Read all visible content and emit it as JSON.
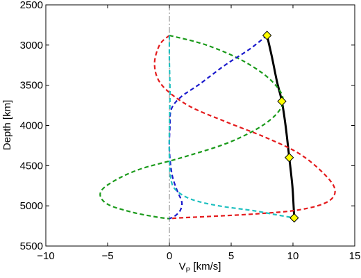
{
  "chart_data": {
    "type": "line",
    "title": "",
    "xlabel_main": "V",
    "xlabel_sub": "P",
    "xlabel_rest": " [km/s]",
    "ylabel": "Depth [km]",
    "xlim": [
      -10,
      15
    ],
    "ylim": [
      2500,
      5500
    ],
    "y_reversed": true,
    "grid": false,
    "legend": "none",
    "x_ticks": [
      -10,
      -5,
      0,
      5,
      10,
      15
    ],
    "x_tick_labels": [
      "−10",
      "−5",
      "0",
      "5",
      "10",
      "15"
    ],
    "y_ticks": [
      2500,
      3000,
      3500,
      4000,
      4500,
      5000,
      5500
    ],
    "y_tick_labels": [
      "2500",
      "3000",
      "3500",
      "4000",
      "4500",
      "5000",
      "5500"
    ],
    "series": [
      {
        "color": "#000000",
        "style": "solid",
        "width": 3,
        "x": [
          7.9,
          8.3,
          8.7,
          9.1,
          9.4,
          9.7,
          9.95,
          10.05,
          10.1
        ],
        "y": [
          2880,
          3150,
          3450,
          3700,
          4000,
          4400,
          4750,
          5000,
          5150
        ]
      },
      {
        "color": "#7f7f7f",
        "style": "dashdot",
        "width": 1,
        "x": [
          0,
          0
        ],
        "y": [
          2500,
          5500
        ]
      },
      {
        "color": "#e41a1c",
        "style": "dashed",
        "width": 2.2,
        "x": [
          0.0,
          -0.8,
          -1.2,
          -0.6,
          1.5,
          4.5,
          7.8,
          10.5,
          12.5,
          13.4,
          12.8,
          10.5,
          7.0,
          3.5,
          0.8,
          0.0
        ],
        "y": [
          2880,
          3000,
          3250,
          3500,
          3750,
          3950,
          4150,
          4350,
          4600,
          4800,
          4950,
          5050,
          5100,
          5130,
          5150,
          5160
        ]
      },
      {
        "color": "#1a9a1a",
        "style": "dashed",
        "width": 2.2,
        "x": [
          0.0,
          3.0,
          6.0,
          8.3,
          9.2,
          8.0,
          5.0,
          1.0,
          -2.5,
          -4.8,
          -5.6,
          -5.0,
          -3.0,
          -1.0,
          0.0
        ],
        "y": [
          2880,
          3000,
          3200,
          3450,
          3700,
          3950,
          4200,
          4400,
          4550,
          4720,
          4850,
          4980,
          5080,
          5140,
          5160
        ]
      },
      {
        "color": "#1a1acc",
        "style": "dashed",
        "width": 2.2,
        "x": [
          7.9,
          6.5,
          4.5,
          2.5,
          0.9,
          0.15,
          0.05,
          0.0,
          0.2,
          0.6,
          1.0,
          0.9,
          0.5,
          0.0
        ],
        "y": [
          2880,
          3050,
          3250,
          3480,
          3650,
          3800,
          4000,
          4300,
          4600,
          4800,
          4950,
          5050,
          5120,
          5160
        ]
      },
      {
        "color": "#1fc0c0",
        "style": "dashed",
        "width": 2.2,
        "x": [
          0.0,
          0.0,
          0.05,
          0.0,
          0.0,
          0.1,
          0.5,
          1.8,
          4.0,
          6.8,
          8.6,
          10.1
        ],
        "y": [
          2880,
          3200,
          3600,
          4000,
          4400,
          4650,
          4800,
          4920,
          5000,
          5060,
          5110,
          5150
        ]
      }
    ],
    "markers": {
      "shape": "diamond",
      "fill": "#ffff00",
      "stroke": "#000000",
      "x": [
        7.9,
        9.1,
        9.7,
        10.1
      ],
      "y": [
        2880,
        3700,
        4400,
        5150
      ]
    }
  }
}
